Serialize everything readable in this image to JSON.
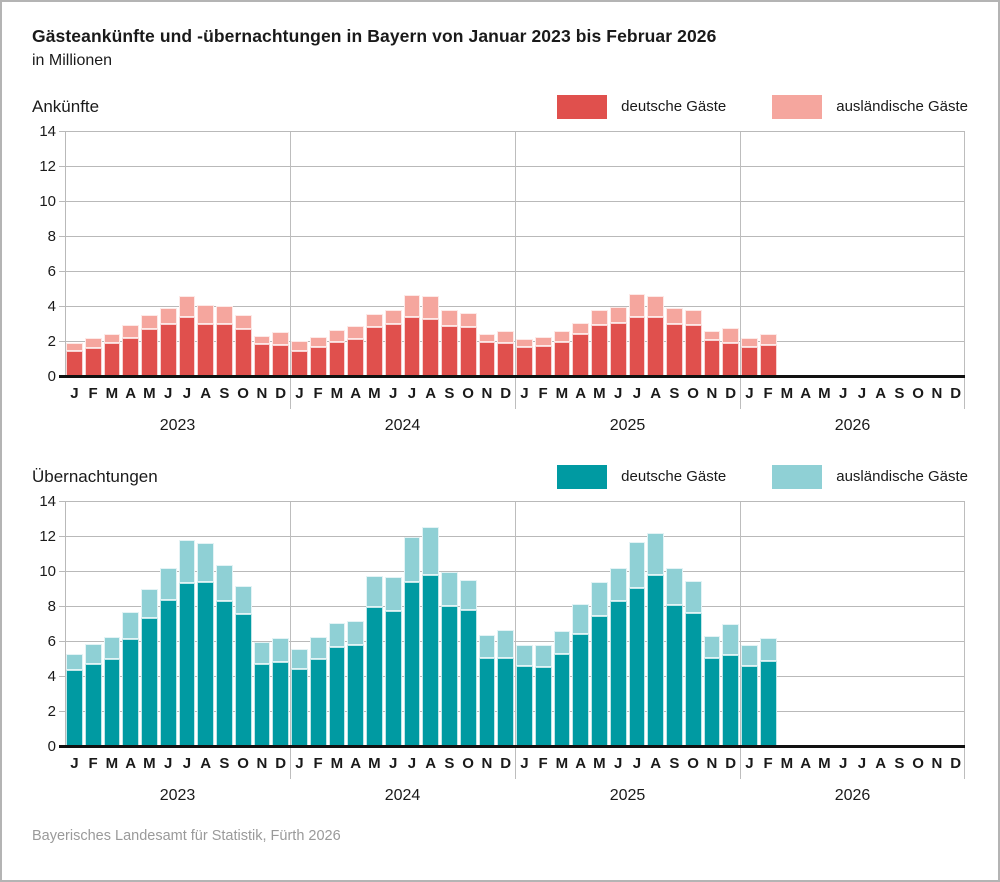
{
  "title": "Gästeankünfte und -übernachtungen in Bayern von Januar 2023 bis Februar 2026",
  "subtitle": "in Millionen",
  "footer": "Bayerisches Landesamt für Statistik, Fürth 2026",
  "colors": {
    "arrivals_domestic": "#e0504d",
    "arrivals_foreign": "#f5a69e",
    "nights_domestic": "#009aa2",
    "nights_foreign": "#8fd0d5",
    "gridline": "#b9b9b9",
    "axis": "#111111",
    "footer_text": "#9a9a9a"
  },
  "chart_data": [
    {
      "type": "bar",
      "stacked": true,
      "title": "Ankünfte",
      "ylim": [
        0,
        14
      ],
      "yticks": [
        0,
        2,
        4,
        6,
        8,
        10,
        12,
        14
      ],
      "grid": true,
      "legend_position": "top-right",
      "years": [
        "2023",
        "2024",
        "2025",
        "2026"
      ],
      "month_letters": [
        "J",
        "F",
        "M",
        "A",
        "M",
        "J",
        "J",
        "A",
        "S",
        "O",
        "N",
        "D"
      ],
      "series": [
        {
          "name": "deutsche Gäste",
          "color": "#e0504d",
          "values": [
            1.5,
            1.65,
            1.95,
            2.25,
            2.75,
            3.0,
            3.45,
            3.0,
            3.05,
            2.75,
            1.9,
            1.85,
            1.5,
            1.7,
            2.0,
            2.15,
            2.85,
            3.0,
            3.4,
            3.3,
            2.9,
            2.85,
            2.0,
            1.95,
            1.7,
            1.75,
            2.0,
            2.45,
            2.95,
            3.1,
            3.45,
            3.4,
            3.0,
            2.95,
            2.1,
            1.95,
            1.7,
            1.8,
            null,
            null,
            null,
            null,
            null,
            null,
            null,
            null,
            null,
            null
          ]
        },
        {
          "name": "ausländische Gäste",
          "color": "#f5a69e",
          "values": [
            0.45,
            0.55,
            0.5,
            0.7,
            0.8,
            0.95,
            1.2,
            1.1,
            1.0,
            0.8,
            0.45,
            0.7,
            0.55,
            0.6,
            0.7,
            0.75,
            0.75,
            0.8,
            1.3,
            1.3,
            0.9,
            0.8,
            0.45,
            0.7,
            0.45,
            0.55,
            0.6,
            0.65,
            0.9,
            0.9,
            1.3,
            1.2,
            0.95,
            0.85,
            0.5,
            0.85,
            0.5,
            0.65,
            null,
            null,
            null,
            null,
            null,
            null,
            null,
            null,
            null,
            null
          ]
        }
      ]
    },
    {
      "type": "bar",
      "stacked": true,
      "title": "Übernachtungen",
      "ylim": [
        0,
        14
      ],
      "yticks": [
        0,
        2,
        4,
        6,
        8,
        10,
        12,
        14
      ],
      "grid": true,
      "legend_position": "top-right",
      "years": [
        "2023",
        "2024",
        "2025",
        "2026"
      ],
      "month_letters": [
        "J",
        "F",
        "M",
        "A",
        "M",
        "J",
        "J",
        "A",
        "S",
        "O",
        "N",
        "D"
      ],
      "series": [
        {
          "name": "deutsche Gäste",
          "color": "#009aa2",
          "values": [
            4.4,
            4.75,
            5.05,
            6.15,
            7.35,
            8.4,
            9.35,
            9.4,
            8.35,
            7.6,
            4.75,
            4.85,
            4.45,
            5.05,
            5.7,
            5.8,
            8.0,
            7.75,
            9.4,
            9.85,
            8.05,
            7.8,
            5.1,
            5.1,
            4.6,
            4.55,
            5.3,
            6.45,
            7.5,
            8.35,
            9.1,
            9.85,
            8.1,
            7.65,
            5.1,
            5.25,
            4.6,
            4.9,
            null,
            null,
            null,
            null,
            null,
            null,
            null,
            null,
            null,
            null
          ]
        },
        {
          "name": "ausländische Gäste",
          "color": "#8fd0d5",
          "values": [
            0.9,
            1.15,
            1.25,
            1.55,
            1.7,
            1.8,
            2.5,
            2.25,
            2.05,
            1.6,
            1.25,
            1.4,
            1.15,
            1.25,
            1.4,
            1.4,
            1.75,
            1.95,
            2.6,
            2.7,
            1.95,
            1.75,
            1.3,
            1.6,
            1.2,
            1.25,
            1.3,
            1.7,
            1.9,
            1.9,
            2.6,
            2.35,
            2.15,
            1.85,
            1.25,
            1.75,
            1.2,
            1.35,
            null,
            null,
            null,
            null,
            null,
            null,
            null,
            null,
            null,
            null
          ]
        }
      ]
    }
  ]
}
